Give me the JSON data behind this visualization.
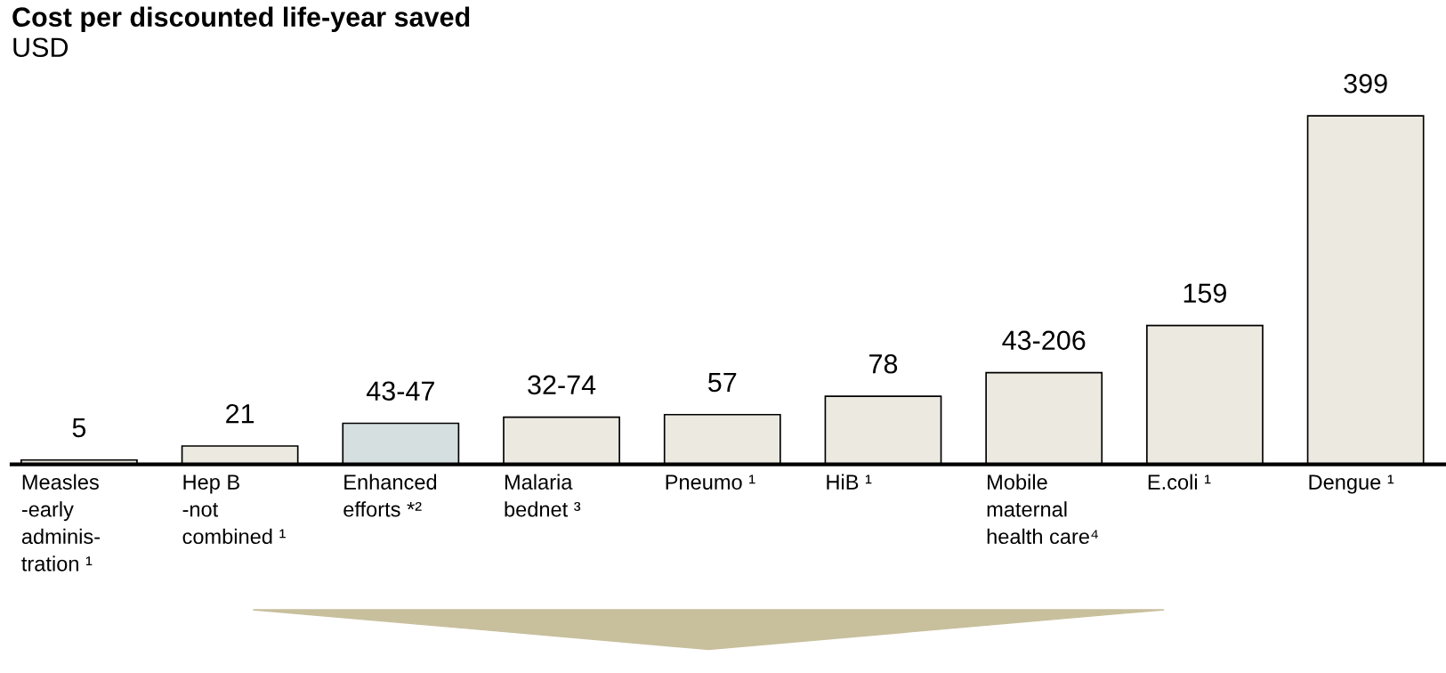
{
  "chart_data": {
    "type": "bar",
    "title": "Cost per discounted life-year saved",
    "subtitle": "USD",
    "categories": [
      "Measles\n-early\nadminis-\ntration ¹",
      "Hep B\n-not\ncombined ¹",
      "Enhanced\nefforts *²",
      "Malaria\nbednet ³",
      "Pneumo ¹",
      "HiB ¹",
      "Mobile\nmaternal\nhealth care⁴",
      "E.coli ¹",
      "Dengue ¹"
    ],
    "values": [
      5,
      21,
      47,
      54,
      57,
      78,
      105,
      159,
      399
    ],
    "value_labels": [
      "5",
      "21",
      "43-47",
      "32-74",
      "57",
      "78",
      "43-206",
      "159",
      "399"
    ],
    "colors": [
      "#ece9e1",
      "#ece9e1",
      "#d5dfe0",
      "#ece9e1",
      "#ece9e1",
      "#ece9e1",
      "#ece9e1",
      "#ece9e1",
      "#ece9e1"
    ],
    "legend": false
  }
}
